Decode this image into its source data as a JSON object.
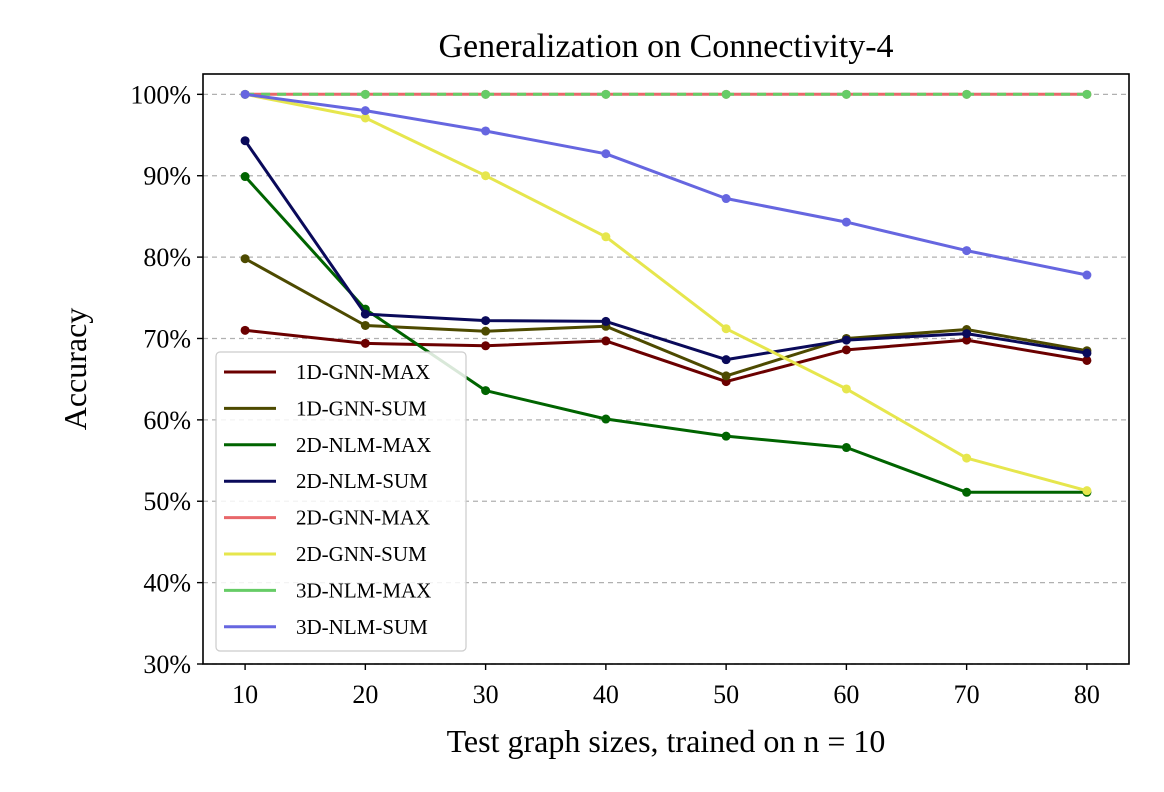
{
  "chart_data": {
    "type": "line",
    "title": "Generalization on Connectivity-4",
    "xlabel": "Test graph sizes, trained on n = 10",
    "ylabel": "Accuracy",
    "x": [
      10,
      20,
      30,
      40,
      50,
      60,
      70,
      80
    ],
    "x_tick_labels": [
      "10",
      "20",
      "30",
      "40",
      "50",
      "60",
      "70",
      "80"
    ],
    "xlim": [
      6.5,
      83.5
    ],
    "ylim": [
      30,
      102.5
    ],
    "y_ticks": [
      30,
      40,
      50,
      60,
      70,
      80,
      90,
      100
    ],
    "y_tick_labels": [
      "30%",
      "40%",
      "50%",
      "60%",
      "70%",
      "80%",
      "90%",
      "100%"
    ],
    "grid": "horizontal dashed",
    "legend_position": "lower-left",
    "series": [
      {
        "name": "1D-GNN-MAX",
        "color": "#6b0000",
        "dashed": false,
        "values": [
          71.0,
          69.4,
          69.1,
          69.7,
          64.7,
          68.6,
          69.8,
          67.3
        ]
      },
      {
        "name": "1D-GNN-SUM",
        "color": "#4d4a00",
        "dashed": false,
        "values": [
          79.8,
          71.6,
          70.9,
          71.5,
          65.4,
          70.0,
          71.1,
          68.5
        ]
      },
      {
        "name": "2D-NLM-MAX",
        "color": "#006400",
        "dashed": false,
        "values": [
          89.9,
          73.6,
          63.6,
          60.1,
          58.0,
          56.6,
          51.1,
          51.1
        ]
      },
      {
        "name": "2D-NLM-SUM",
        "color": "#0a0a5a",
        "dashed": false,
        "values": [
          94.3,
          73.0,
          72.2,
          72.1,
          67.4,
          69.8,
          70.6,
          68.2
        ]
      },
      {
        "name": "2D-GNN-MAX",
        "color": "#e8676a",
        "dashed": false,
        "values": [
          100,
          100,
          100,
          100,
          100,
          100,
          100,
          100
        ]
      },
      {
        "name": "2D-GNN-SUM",
        "color": "#e6e64d",
        "dashed": false,
        "values": [
          100,
          97.1,
          90.0,
          82.5,
          71.2,
          63.8,
          55.3,
          51.3
        ]
      },
      {
        "name": "3D-NLM-MAX",
        "color": "#66cc66",
        "dashed": true,
        "values": [
          100,
          100,
          100,
          100,
          100,
          100,
          100,
          100
        ]
      },
      {
        "name": "3D-NLM-SUM",
        "color": "#6666e0",
        "dashed": false,
        "values": [
          100,
          98.0,
          95.5,
          92.7,
          87.2,
          84.3,
          80.8,
          77.8
        ]
      }
    ]
  }
}
